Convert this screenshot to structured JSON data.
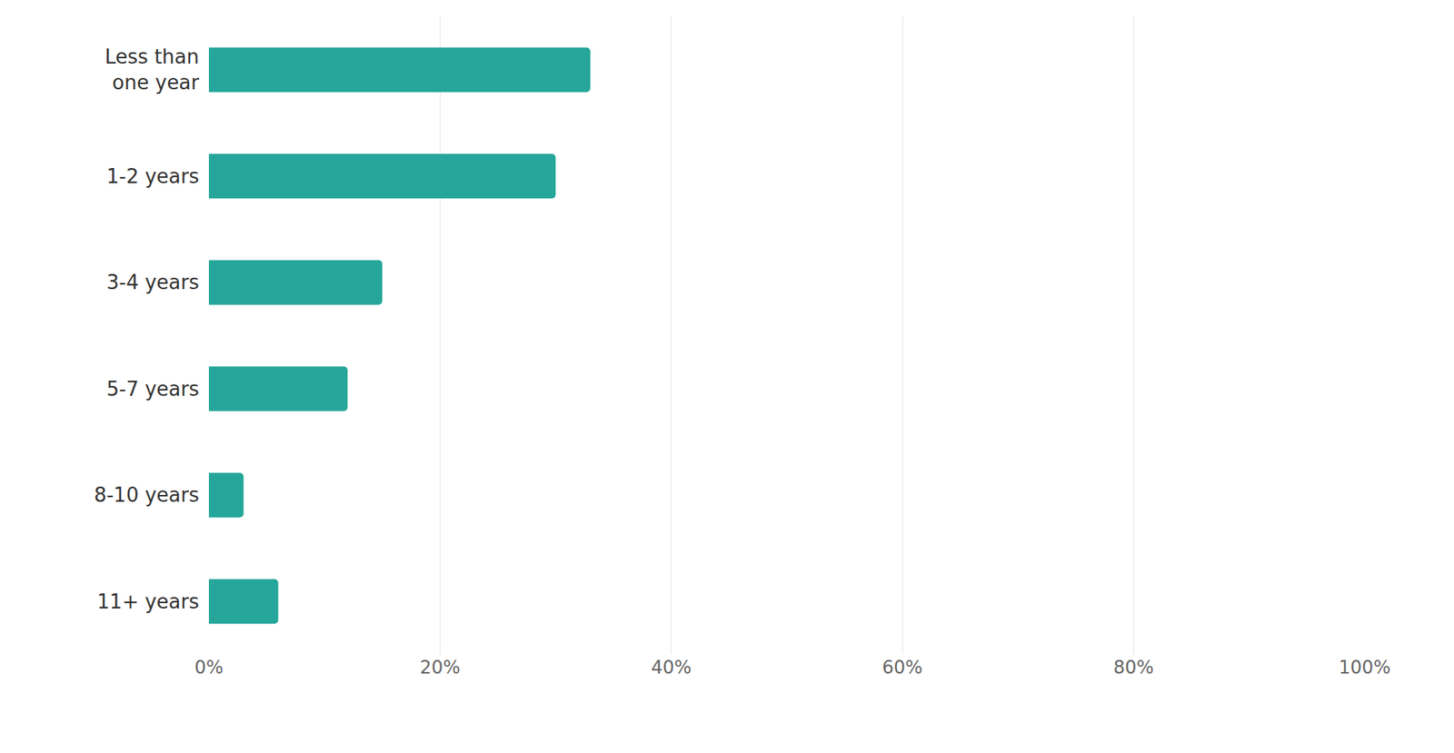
{
  "chart_data": {
    "type": "bar",
    "orientation": "horizontal",
    "categories": [
      "Less than one year",
      "1-2 years",
      "3-4 years",
      "5-7 years",
      "8-10 years",
      "11+ years"
    ],
    "values": [
      33,
      30,
      15,
      12,
      3,
      6
    ],
    "color": "#26a69a",
    "xlim": [
      0,
      100
    ],
    "xticks": [
      {
        "value": 0,
        "label": "0%"
      },
      {
        "value": 20,
        "label": "20%"
      },
      {
        "value": 40,
        "label": "40%"
      },
      {
        "value": 60,
        "label": "60%"
      },
      {
        "value": 80,
        "label": "80%"
      },
      {
        "value": 100,
        "label": "100%"
      }
    ],
    "grid": true
  }
}
